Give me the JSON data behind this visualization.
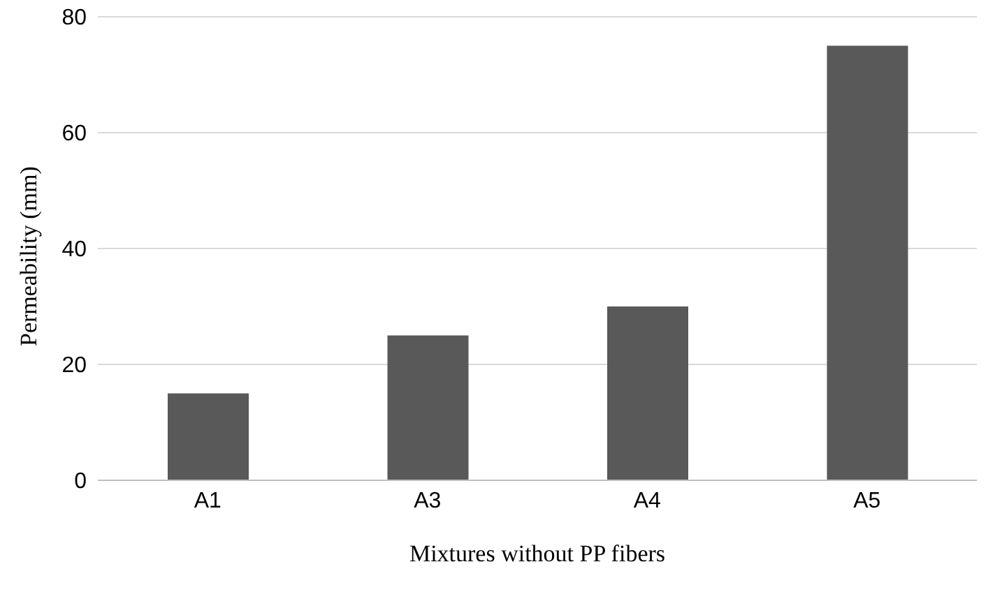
{
  "chart_data": {
    "type": "bar",
    "xlabel": "Mixtures without PP fibers",
    "ylabel": "Permeability (mm)",
    "categories": [
      "A1",
      "A3",
      "A4",
      "A5"
    ],
    "values": [
      15,
      25,
      30,
      75
    ],
    "color": "#595959",
    "ylim": [
      0,
      80
    ],
    "yticks": [
      0,
      20,
      40,
      60,
      80
    ],
    "grid": "y"
  }
}
